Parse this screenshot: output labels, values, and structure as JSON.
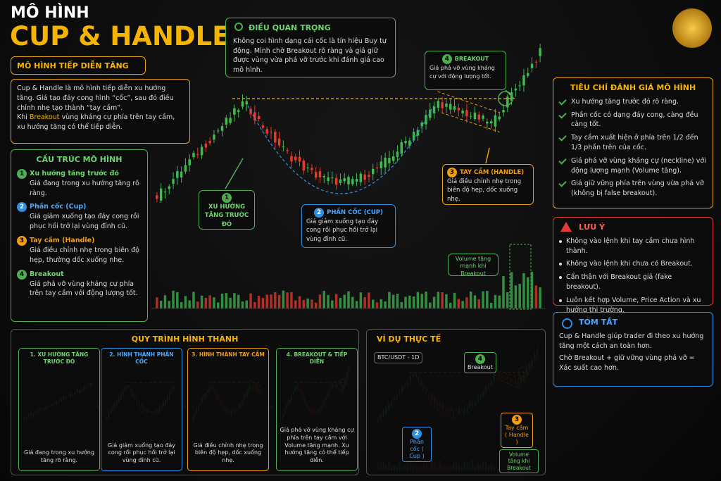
{
  "header": {
    "title_small": "MÔ HÌNH",
    "title": "CUP & HANDLE",
    "subtitle": "MÔ HÌNH TIẾP DIỄN TĂNG"
  },
  "intro": {
    "p1": "Cup & Handle là mô hình tiếp diễn xu hướng tăng. Giá tạo đáy cong hình “cốc”, sau đó điều chỉnh nhẹ tạo thành “tay cầm”.",
    "p2_start": "Khi",
    "p2_highlight": "Breakout",
    "p2_end": "vùng kháng cự phía trên tay cầm, xu hướng tăng có thể tiếp diễn."
  },
  "key_point": {
    "title": "ĐIỀU QUAN TRỌNG",
    "text": "Không coi hình dạng cái cốc là tín hiệu Buy tự động. Mình chờ Breakout rõ ràng và giá giữ được vùng vừa phá vỡ trước khi đánh giá cao mô hình."
  },
  "structure": {
    "title": "CẤU TRÚC MÔ HÌNH",
    "items": [
      {
        "num": "1",
        "title": "Xu hướng tăng trước đó",
        "text": "Giá đang trong xu hướng tăng rõ ràng."
      },
      {
        "num": "2",
        "title": "Phần cốc (Cup)",
        "text": "Giá giảm xuống tạo đáy cong rồi phục hồi trở lại vùng đỉnh cũ."
      },
      {
        "num": "3",
        "title": "Tay cầm (Handle)",
        "text": "Giá điều chỉnh nhẹ trong biên độ hẹp, thường dốc xuống nhẹ."
      },
      {
        "num": "4",
        "title": "Breakout",
        "text": "Giá phá vỡ vùng kháng cự phía trên tay cầm với động lượng tốt."
      }
    ]
  },
  "main_chart": {
    "ann1": {
      "num": "1",
      "text": "XU HƯỚNG TĂNG TRƯỚC ĐÓ"
    },
    "ann2": {
      "num": "2",
      "title": "PHẦN CỐC (CUP)",
      "text": "Giá giảm xuống tạo đáy cong rồi phục hồi trở lại vùng đỉnh cũ."
    },
    "ann3": {
      "num": "3",
      "title": "TAY CẦM (HANDLE)",
      "text": "Giá điều chỉnh nhẹ trong biên độ hẹp, dốc xuống nhẹ."
    },
    "ann4": {
      "num": "4",
      "title": "BREAKOUT",
      "text": "Giá phá vỡ vùng kháng cự với động lượng tốt."
    },
    "volume_note": "Volume tăng mạnh khi Breakout"
  },
  "criteria": {
    "title": "TIÊU CHÍ ĐÁNH GIÁ MÔ HÌNH",
    "items": [
      "Xu hướng tăng trước đó rõ ràng.",
      "Phần cốc có dạng đáy cong, càng đều càng tốt.",
      "Tay cầm xuất hiện ở phía trên 1/2 đến 1/3 phần trên của cốc.",
      "Giá phá vỡ vùng kháng cự (neckline) với động lượng mạnh (Volume tăng).",
      "Giá giữ vững phía trên vùng vừa phá vỡ (không bị false breakout)."
    ]
  },
  "warning": {
    "title": "LƯU Ý",
    "items": [
      "Không vào lệnh khi tay cầm chưa hình thành.",
      "Không vào lệnh khi chưa có Breakout.",
      "Cẩn thận với Breakout giả (fake breakout).",
      "Luôn kết hợp Volume, Price Action và xu hướng thị trường."
    ]
  },
  "summary": {
    "title": "TÓM TẮT",
    "p1": "Cup & Handle giúp trader đi theo xu hướng tăng một cách an toàn hơn.",
    "p2": "Chờ Breakout + giữ vững vùng phá vỡ = Xác suất cao hơn."
  },
  "process": {
    "title": "QUY TRÌNH HÌNH THÀNH",
    "steps": [
      {
        "title": "1. XU HƯỚNG TĂNG TRƯỚC ĐÓ",
        "text": "Giá đang trong xu hướng tăng rõ ràng."
      },
      {
        "title": "2. HÌNH THÀNH PHẦN CỐC",
        "text": "Giá giảm xuống tạo đáy cong rồi phục hồi trở lại vùng đỉnh cũ."
      },
      {
        "title": "3. HÌNH THÀNH TAY CẦM",
        "text": "Giá điều chỉnh nhẹ trong biên độ hẹp, dốc xuống nhẹ."
      },
      {
        "title": "4. BREAKOUT & TIẾP DIỄN",
        "text": "Giá phá vỡ vùng kháng cự phía trên tay cầm với Volume tăng mạnh. Xu hướng tăng có thể tiếp diễn."
      }
    ]
  },
  "example": {
    "title": "VÍ DỤ THỰC TẾ",
    "pair": "BTC/USDT - 1D",
    "breakout_num": "4",
    "breakout": "Breakout",
    "cup_num": "2",
    "cup": "Phần cốc ( Cup )",
    "handle_num": "3",
    "handle": "Tay cầm ( Handle )",
    "volume": "Volume tăng khi Breakout"
  }
}
